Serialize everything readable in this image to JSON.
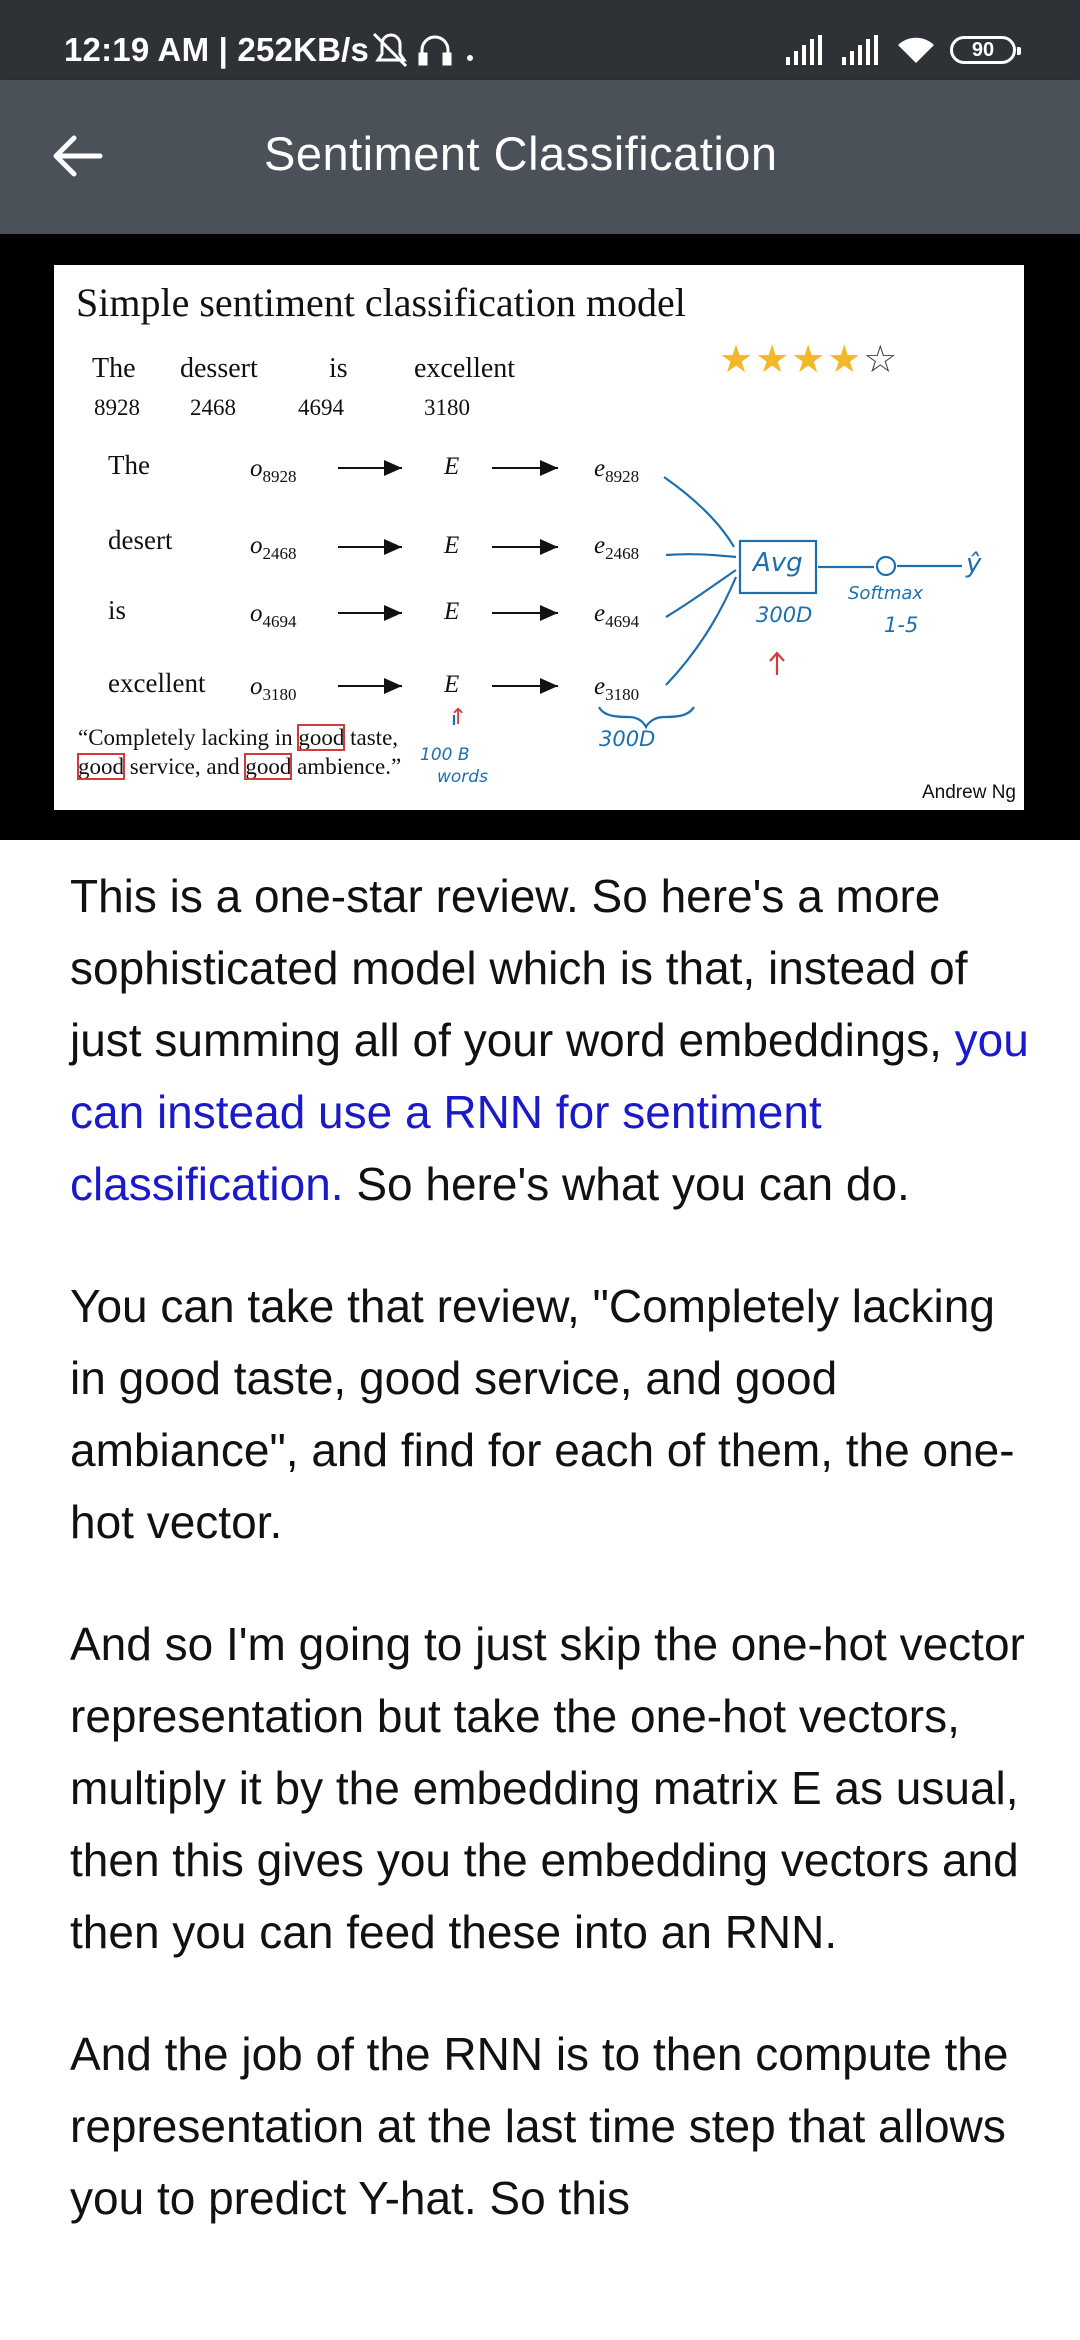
{
  "status_bar": {
    "time": "12:19 AM | 252KB/s",
    "battery": "90"
  },
  "app_bar": {
    "title": "Sentiment Classification",
    "back_icon": "arrow-left-icon"
  },
  "slide": {
    "title": "Simple sentiment classification model",
    "sentence_words": [
      "The",
      "dessert",
      "is",
      "excellent"
    ],
    "word_indices": [
      "8928",
      "2468",
      "4694",
      "3180"
    ],
    "stars": {
      "filled": 4,
      "total": 5,
      "filled_glyphs": "★★★★",
      "empty_glyphs": "☆"
    },
    "rows": [
      {
        "word": "The",
        "onehot_base": "o",
        "onehot_sub": "8928",
        "matrix": "E",
        "emb_base": "e",
        "emb_sub": "8928"
      },
      {
        "word": "desert",
        "onehot_base": "o",
        "onehot_sub": "2468",
        "matrix": "E",
        "emb_base": "e",
        "emb_sub": "2468"
      },
      {
        "word": "is",
        "onehot_base": "o",
        "onehot_sub": "4694",
        "matrix": "E",
        "emb_base": "e",
        "emb_sub": "4694"
      },
      {
        "word": "excellent",
        "onehot_base": "o",
        "onehot_sub": "3180",
        "matrix": "E",
        "emb_base": "e",
        "emb_sub": "3180"
      }
    ],
    "quote": {
      "open": "“Completely lacking in ",
      "good1": "good",
      "mid1": " taste, ",
      "good2": "good",
      "mid2": " service, and ",
      "good3": "good",
      "close": " ambience.”"
    },
    "author": "Andrew Ng",
    "annotations": {
      "avg": "Avg",
      "dim_avg": "300D",
      "dim_emb": "300D",
      "softmax": "Softmax",
      "range": "1-5",
      "words": "100 B",
      "words2": "words",
      "y_hat": "ŷ",
      "unit": "o"
    }
  },
  "article": {
    "p1_a": "This is a one-star review. So here's a more sophisticated model which is that, instead of just summing all of your word embeddings, ",
    "p1_link": "you can instead use a RNN for sentiment classification.",
    "p1_b": " So here's what you can do.",
    "p2": "You can take that review, \"Completely lacking in good taste, good service, and good ambiance\", and find for each of them, the one-hot vector.",
    "p3": "And so I'm going to just skip the one-hot vector representation but take the one-hot vectors, multiply it by the embedding matrix E as usual, then this gives you the embedding vectors and then you can feed these into an RNN.",
    "p4": "And the job of the RNN is to then compute the representation at the last time step that allows you to predict Y-hat. So this"
  }
}
